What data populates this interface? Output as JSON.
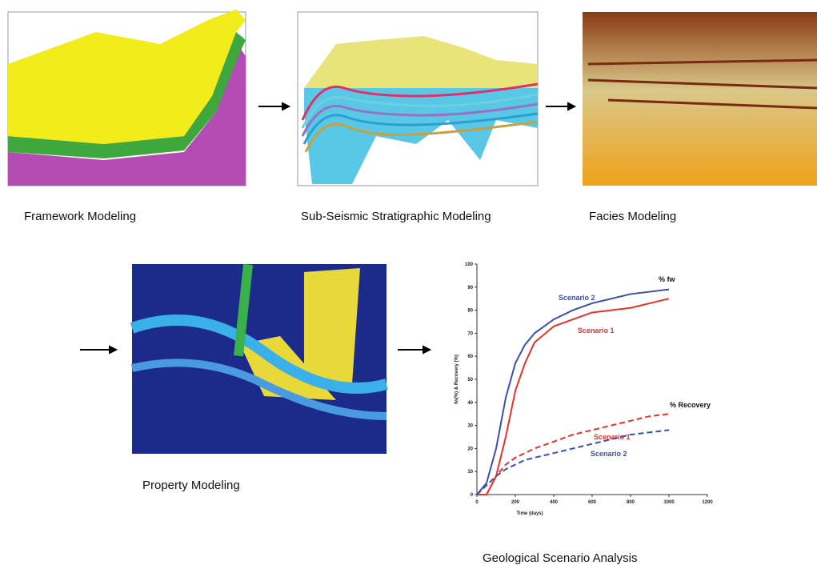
{
  "panels": [
    {
      "caption": "Framework Modeling"
    },
    {
      "caption": "Sub-Seismic Stratigraphic Modeling"
    },
    {
      "caption": "Facies Modeling"
    },
    {
      "caption": "Property Modeling"
    },
    {
      "caption": "Geological Scenario Analysis"
    }
  ],
  "chart_data": {
    "type": "line",
    "x_label": "Time (days)",
    "y_label": "fw(%) & Recovery (%)",
    "annotations": [
      "% fw",
      "% Recovery"
    ],
    "x": [
      0,
      50,
      100,
      150,
      200,
      250,
      300,
      400,
      500,
      600,
      700,
      800,
      900,
      1000
    ],
    "series": [
      {
        "name": "Scenario 2",
        "color": "#3a50b0",
        "style": "solid",
        "values": [
          0,
          5,
          20,
          42,
          57,
          65,
          70,
          76,
          80,
          83,
          85,
          87,
          88,
          89
        ]
      },
      {
        "name": "Scenario 1",
        "color": "#e8322a",
        "style": "solid",
        "values": [
          0,
          0,
          8,
          25,
          45,
          57,
          66,
          73,
          76,
          79,
          80,
          81,
          83,
          85
        ]
      },
      {
        "name": "Scenario 1",
        "color": "#e8322a",
        "style": "dashed",
        "values": [
          0,
          0,
          8,
          13,
          16,
          18,
          20,
          23,
          26,
          28,
          30,
          32,
          34,
          35
        ]
      },
      {
        "name": "Scenario 2",
        "color": "#3a50b0",
        "style": "dashed",
        "values": [
          0,
          4,
          8,
          11,
          13,
          15,
          16,
          18,
          20,
          22,
          24,
          26,
          27,
          28
        ]
      }
    ],
    "xlim": [
      0,
      1200
    ],
    "xticks": [
      0,
      200,
      400,
      600,
      800,
      1000,
      1200
    ],
    "ylim": [
      0,
      100
    ],
    "yticks": [
      0,
      10,
      20,
      30,
      40,
      50,
      60,
      70,
      80,
      90,
      100
    ]
  }
}
